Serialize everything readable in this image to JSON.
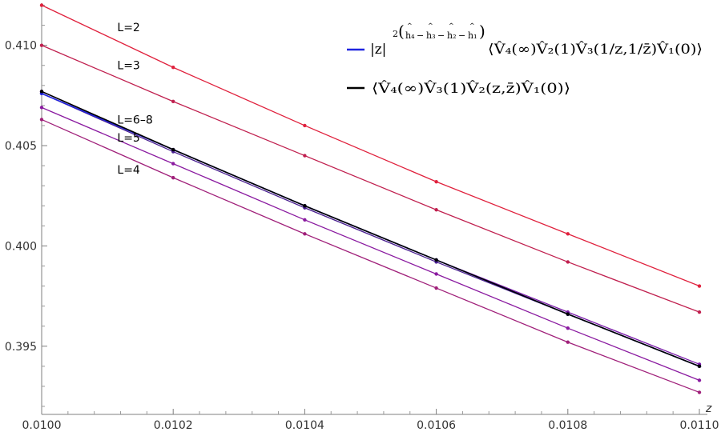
{
  "chart_data": {
    "type": "line",
    "xlabel": "z",
    "ylabel": "",
    "xlim": [
      0.01,
      0.011
    ],
    "ylim": [
      0.3916,
      0.4121
    ],
    "grid": false,
    "legend_placement": "top-right",
    "x_ticks": [
      "0.0100",
      "0.0102",
      "0.0104",
      "0.0106",
      "0.0108",
      "0.0110"
    ],
    "y_ticks": [
      "0.395",
      "0.400",
      "0.405",
      "0.410"
    ],
    "x": [
      0.01,
      0.0102,
      0.0104,
      0.0106,
      0.0108,
      0.011
    ],
    "series": [
      {
        "label": "L=2",
        "color": "#e0213d",
        "values": [
          0.412,
          0.4089,
          0.406,
          0.4032,
          0.4006,
          0.398
        ]
      },
      {
        "label": "L=3",
        "color": "#c0204f",
        "values": [
          0.41,
          0.4072,
          0.4045,
          0.4018,
          0.3992,
          0.3967
        ]
      },
      {
        "label": "L=6–8",
        "color": "#4a2090",
        "values": [
          0.4076,
          0.4047,
          0.4019,
          0.3992,
          0.3966,
          0.394
        ]
      },
      {
        "label": "L=6–8",
        "color": "#7a1aa8",
        "values": [
          0.4077,
          0.4048,
          0.402,
          0.3993,
          0.3967,
          0.3941
        ]
      },
      {
        "label": "L=5",
        "color": "#8a1aa0",
        "values": [
          0.4069,
          0.4041,
          0.4013,
          0.3986,
          0.3959,
          0.3933
        ]
      },
      {
        "label": "L=4",
        "color": "#a0207a",
        "values": [
          0.4063,
          0.4034,
          0.4006,
          0.3979,
          0.3952,
          0.3927
        ]
      },
      {
        "name": "|z|^{2(ĥ₄−ĥ₃−ĥ₂−ĥ₁)}⟨V̂₄(∞)V̂₂(1)V̂₃(1/z,1/z̄)V̂₁(0)⟩",
        "color": "#1f24e0",
        "values": [
          0.4076,
          0.4048,
          0.402,
          0.3993,
          0.3966,
          0.394
        ]
      },
      {
        "name": "⟨V̂₄(∞)V̂₃(1)V̂₂(z,z̄)V̂₁(0)⟩",
        "color": "#000000",
        "values": [
          0.4077,
          0.4048,
          0.402,
          0.3993,
          0.3966,
          0.394
        ]
      }
    ],
    "curve_labels": [
      {
        "text": "L=2",
        "x": 0.01002,
        "y": 0.4109
      },
      {
        "text": "L=3",
        "x": 0.01002,
        "y": 0.409
      },
      {
        "text": "L=6–8",
        "x": 0.01002,
        "y": 0.4063
      },
      {
        "text": "L=5",
        "x": 0.01002,
        "y": 0.4054
      },
      {
        "text": "L=4",
        "x": 0.01002,
        "y": 0.4038
      }
    ],
    "legend": [
      {
        "color": "#1f24e0",
        "prefix": "|z|",
        "sup_2": "2",
        "sup_open": "(",
        "sup_h4": "h₄",
        "sup_h3": "h₃",
        "sup_h2": "h₂",
        "sup_h1": "h₁",
        "sup_minus": "−",
        "sup_close": ")",
        "sup_hat": "^",
        "body": "⟨V̂₄(∞)V̂₂(1)V̂₃(1/z,1/z̄)V̂₁(0)⟩"
      },
      {
        "color": "#000000",
        "body": "⟨V̂₄(∞)V̂₃(1)V̂₂(z,z̄)V̂₁(0)⟩"
      }
    ]
  }
}
